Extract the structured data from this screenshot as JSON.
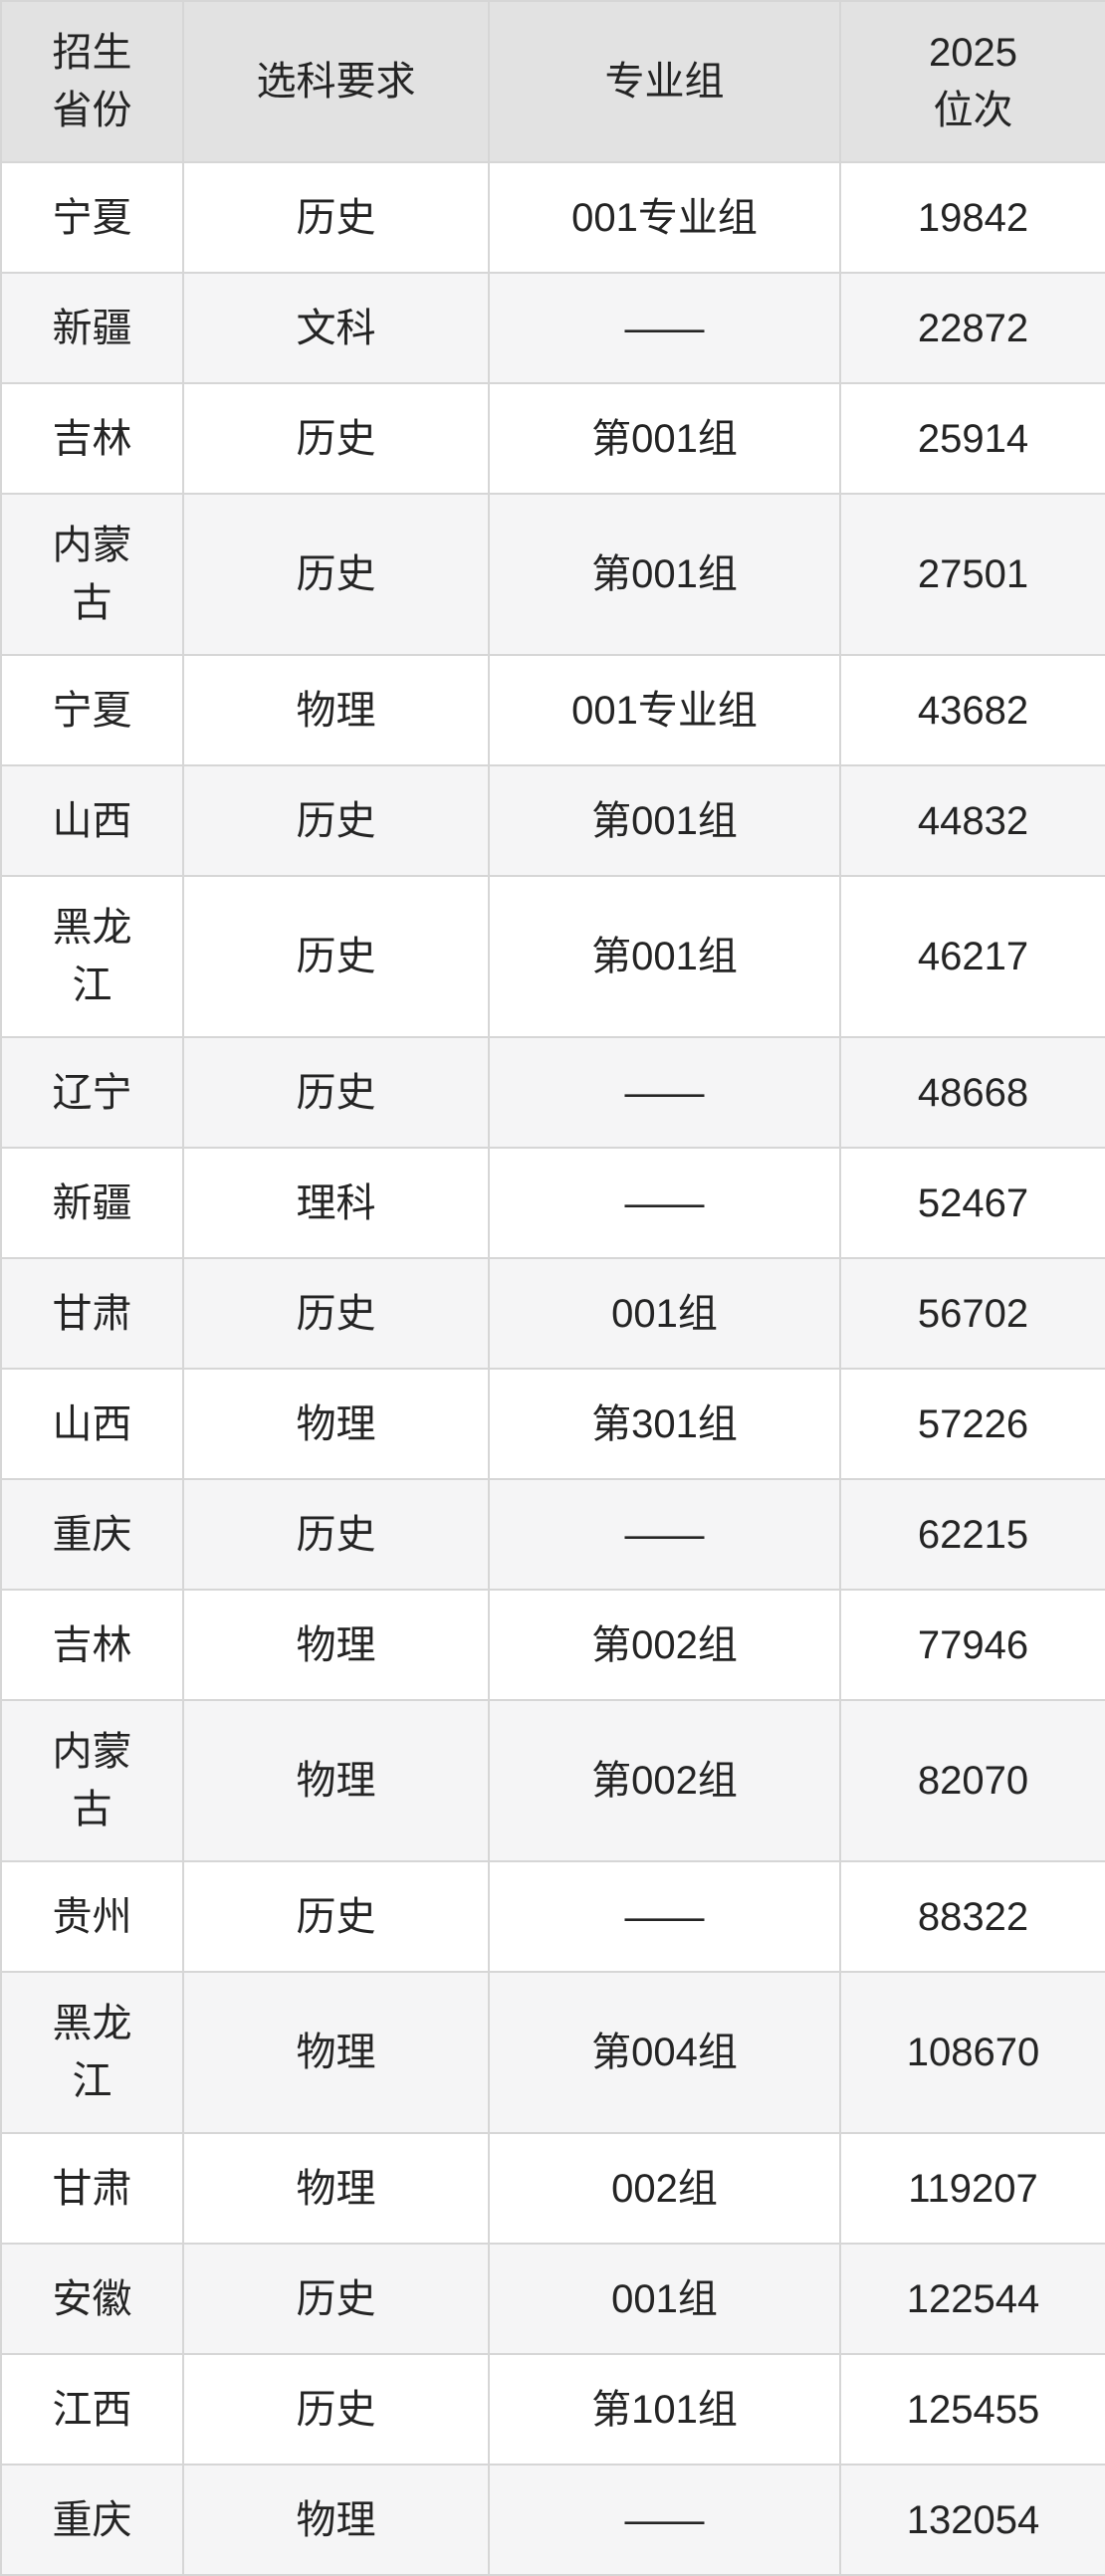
{
  "chart_data": {
    "type": "table",
    "title": "",
    "columns": [
      "招生\n省份",
      "选科要求",
      "专业组",
      "2025\n位次"
    ],
    "rows": [
      [
        "宁夏",
        "历史",
        "001专业组",
        "19842"
      ],
      [
        "新疆",
        "文科",
        "——",
        "22872"
      ],
      [
        "吉林",
        "历史",
        "第001组",
        "25914"
      ],
      [
        "内蒙\n古",
        "历史",
        "第001组",
        "27501"
      ],
      [
        "宁夏",
        "物理",
        "001专业组",
        "43682"
      ],
      [
        "山西",
        "历史",
        "第001组",
        "44832"
      ],
      [
        "黑龙\n江",
        "历史",
        "第001组",
        "46217"
      ],
      [
        "辽宁",
        "历史",
        "——",
        "48668"
      ],
      [
        "新疆",
        "理科",
        "——",
        "52467"
      ],
      [
        "甘肃",
        "历史",
        "001组",
        "56702"
      ],
      [
        "山西",
        "物理",
        "第301组",
        "57226"
      ],
      [
        "重庆",
        "历史",
        "——",
        "62215"
      ],
      [
        "吉林",
        "物理",
        "第002组",
        "77946"
      ],
      [
        "内蒙\n古",
        "物理",
        "第002组",
        "82070"
      ],
      [
        "贵州",
        "历史",
        "——",
        "88322"
      ],
      [
        "黑龙\n江",
        "物理",
        "第004组",
        "108670"
      ],
      [
        "甘肃",
        "物理",
        "002组",
        "119207"
      ],
      [
        "安徽",
        "历史",
        "001组",
        "122544"
      ],
      [
        "江西",
        "历史",
        "第101组",
        "125455"
      ],
      [
        "重庆",
        "物理",
        "——",
        "132054"
      ]
    ],
    "layout": {
      "grid": "on",
      "striped_rows": true,
      "header_rows": 1
    }
  },
  "colors": {
    "header_bg": "#e2e2e2",
    "row_odd_bg": "#ffffff",
    "row_even_bg": "#f5f5f6",
    "border": "#d6d6d6",
    "text": "#242424"
  }
}
